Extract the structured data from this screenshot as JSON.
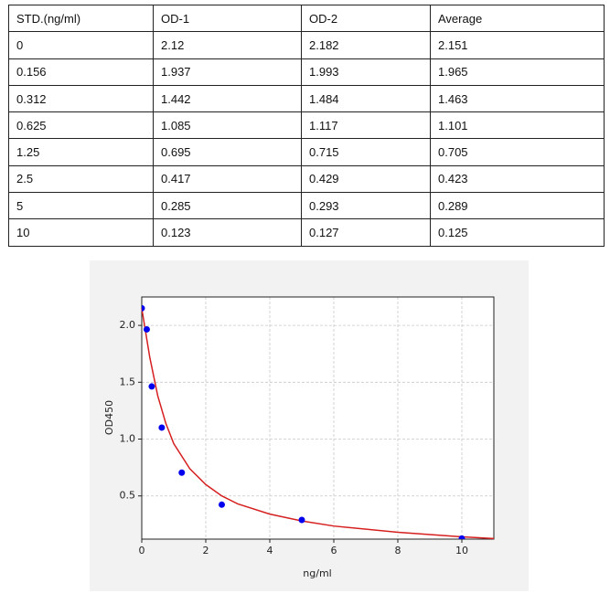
{
  "table": {
    "rows": [
      [
        "STD.(ng/ml)",
        "OD-1",
        "OD-2",
        "Average"
      ],
      [
        "0",
        "2.12",
        "2.182",
        "2.151"
      ],
      [
        "0.156",
        "1.937",
        "1.993",
        "1.965"
      ],
      [
        "0.312",
        "1.442",
        "1.484",
        "1.463"
      ],
      [
        "0.625",
        "1.085",
        "1.117",
        "1.101"
      ],
      [
        "1.25",
        "0.695",
        "0.715",
        "0.705"
      ],
      [
        "2.5",
        "0.417",
        "0.429",
        "0.423"
      ],
      [
        "5",
        "0.285",
        "0.293",
        "0.289"
      ],
      [
        "10",
        "0.123",
        "0.127",
        "0.125"
      ]
    ]
  },
  "chart_data": {
    "type": "scatter",
    "xlabel": "ng/ml",
    "ylabel": "OD450",
    "xlim": [
      0,
      11
    ],
    "ylim": [
      0.12,
      2.25
    ],
    "xticks": [
      0,
      2,
      4,
      6,
      8,
      10
    ],
    "yticks": [
      0.5,
      {
        "value": 1,
        "label": "1.0"
      },
      1.5,
      {
        "value": 2,
        "label": "2.0"
      }
    ],
    "grid": true,
    "series": [
      {
        "color": "#0000ee",
        "x": [
          0,
          0.156,
          0.312,
          0.625,
          1.25,
          2.5,
          5,
          10
        ],
        "values": [
          2.151,
          1.965,
          1.463,
          1.101,
          0.705,
          0.423,
          0.289,
          0.125
        ]
      },
      {
        "color": "#d62020",
        "line": true,
        "x": [
          0,
          0.25,
          0.5,
          0.75,
          1,
          1.5,
          2,
          2.5,
          3,
          4,
          5,
          6,
          8,
          10,
          11
        ],
        "values": [
          2.15,
          1.72,
          1.38,
          1.14,
          0.96,
          0.74,
          0.6,
          0.5,
          0.43,
          0.34,
          0.28,
          0.235,
          0.18,
          0.14,
          0.125
        ]
      }
    ]
  }
}
